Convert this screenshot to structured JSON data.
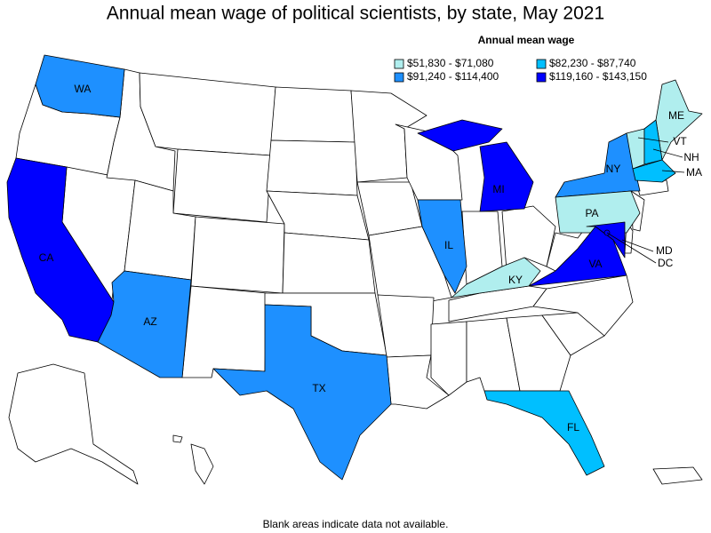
{
  "title": "Annual mean wage of political scientists, by state, May 2021",
  "legend": {
    "title": "Annual mean wage",
    "items": [
      {
        "label": "$51,830 - $71,080",
        "color": "#b0eeee"
      },
      {
        "label": "$82,230 - $87,740",
        "color": "#00bfff"
      },
      {
        "label": "$91,240 - $114,400",
        "color": "#1e90ff"
      },
      {
        "label": "$119,160 - $143,150",
        "color": "#0000ff"
      }
    ]
  },
  "states": [
    {
      "label": "WA",
      "color": "#1e90ff"
    },
    {
      "label": "CA",
      "color": "#0000ff"
    },
    {
      "label": "AZ",
      "color": "#1e90ff"
    },
    {
      "label": "TX",
      "color": "#1e90ff"
    },
    {
      "label": "IL",
      "color": "#1e90ff"
    },
    {
      "label": "MI",
      "color": "#0000ff"
    },
    {
      "label": "KY",
      "color": "#b0eeee"
    },
    {
      "label": "FL",
      "color": "#00bfff"
    },
    {
      "label": "NY",
      "color": "#1e90ff"
    },
    {
      "label": "PA",
      "color": "#b0eeee"
    },
    {
      "label": "VA",
      "color": "#0000ff"
    },
    {
      "label": "MD",
      "color": "#0000ff"
    },
    {
      "label": "DC",
      "color": "#0000ff"
    },
    {
      "label": "ME",
      "color": "#b0eeee"
    },
    {
      "label": "VT",
      "color": "#b0eeee"
    },
    {
      "label": "NH",
      "color": "#00bfff"
    },
    {
      "label": "MA",
      "color": "#00bfff"
    }
  ],
  "note": "Blank areas indicate data not available."
}
